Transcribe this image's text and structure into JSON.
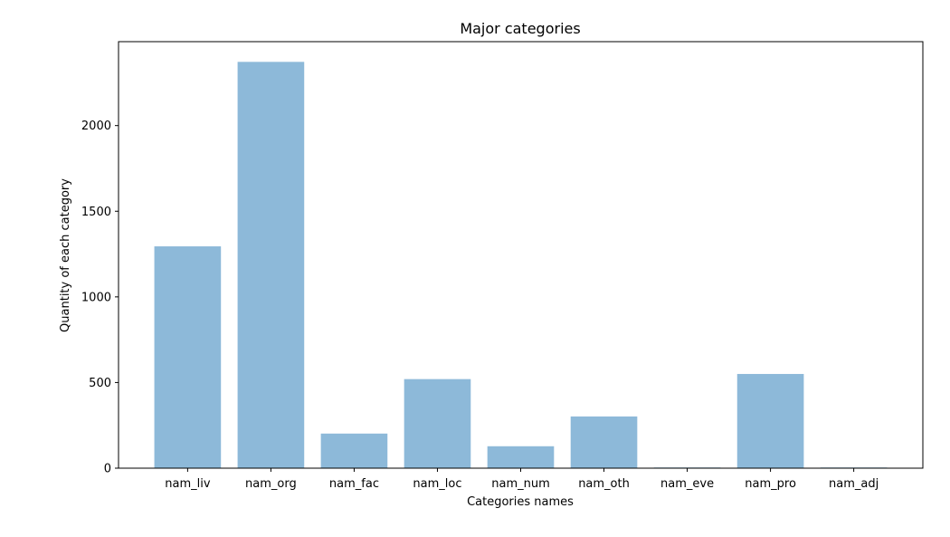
{
  "chart_data": {
    "type": "bar",
    "title": "Major categories",
    "xlabel": "Categories names",
    "ylabel": "Quantity of each category",
    "categories": [
      "nam_liv",
      "nam_org",
      "nam_fac",
      "nam_loc",
      "nam_num",
      "nam_oth",
      "nam_eve",
      "nam_pro",
      "nam_adj"
    ],
    "values": [
      1295,
      2372,
      202,
      520,
      128,
      302,
      4,
      550,
      4
    ],
    "ylim": [
      0,
      2490
    ],
    "yticks": [
      0,
      500,
      1000,
      1500,
      2000
    ],
    "ytick_labels": [
      "0",
      "500",
      "1000",
      "1500",
      "2000"
    ],
    "bar_color": "#8db9d9",
    "grid": false,
    "legend": "none"
  }
}
